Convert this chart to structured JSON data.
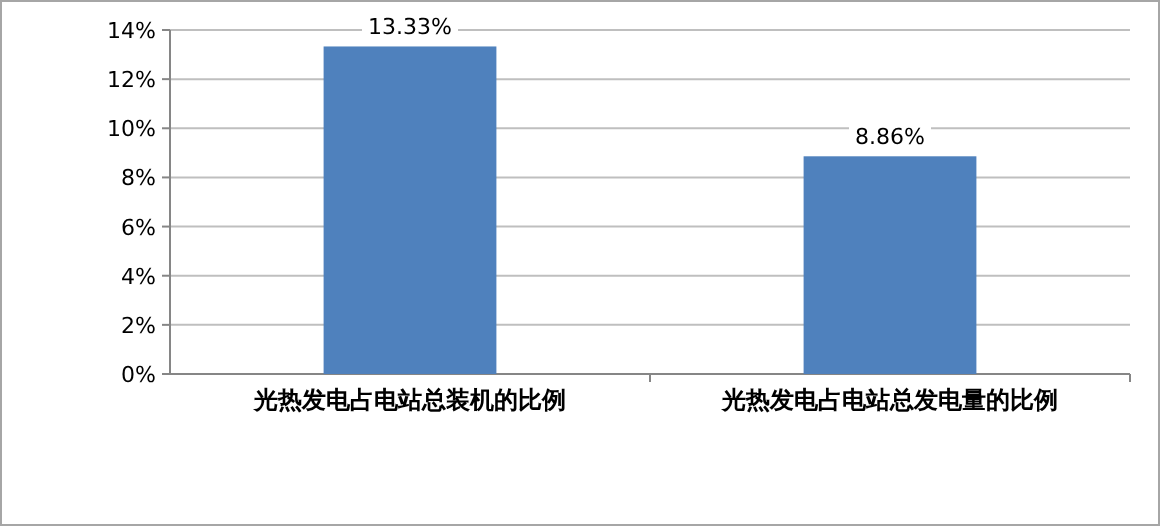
{
  "chart_data": {
    "type": "bar",
    "categories": [
      "光热发电占电站总装机的比例",
      "光热发电占电站总发电量的比例"
    ],
    "values": [
      13.33,
      8.86
    ],
    "value_labels": [
      "13.33%",
      "8.86%"
    ],
    "color": "#4f81bd",
    "ylim": [
      0,
      14
    ],
    "yticks": [
      {
        "value": 0,
        "label": "0%"
      },
      {
        "value": 2,
        "label": "2%"
      },
      {
        "value": 4,
        "label": "4%"
      },
      {
        "value": 6,
        "label": "6%"
      },
      {
        "value": 8,
        "label": "8%"
      },
      {
        "value": 10,
        "label": "10%"
      },
      {
        "value": 12,
        "label": "12%"
      },
      {
        "value": 14,
        "label": "14%"
      }
    ],
    "grid": "y"
  }
}
